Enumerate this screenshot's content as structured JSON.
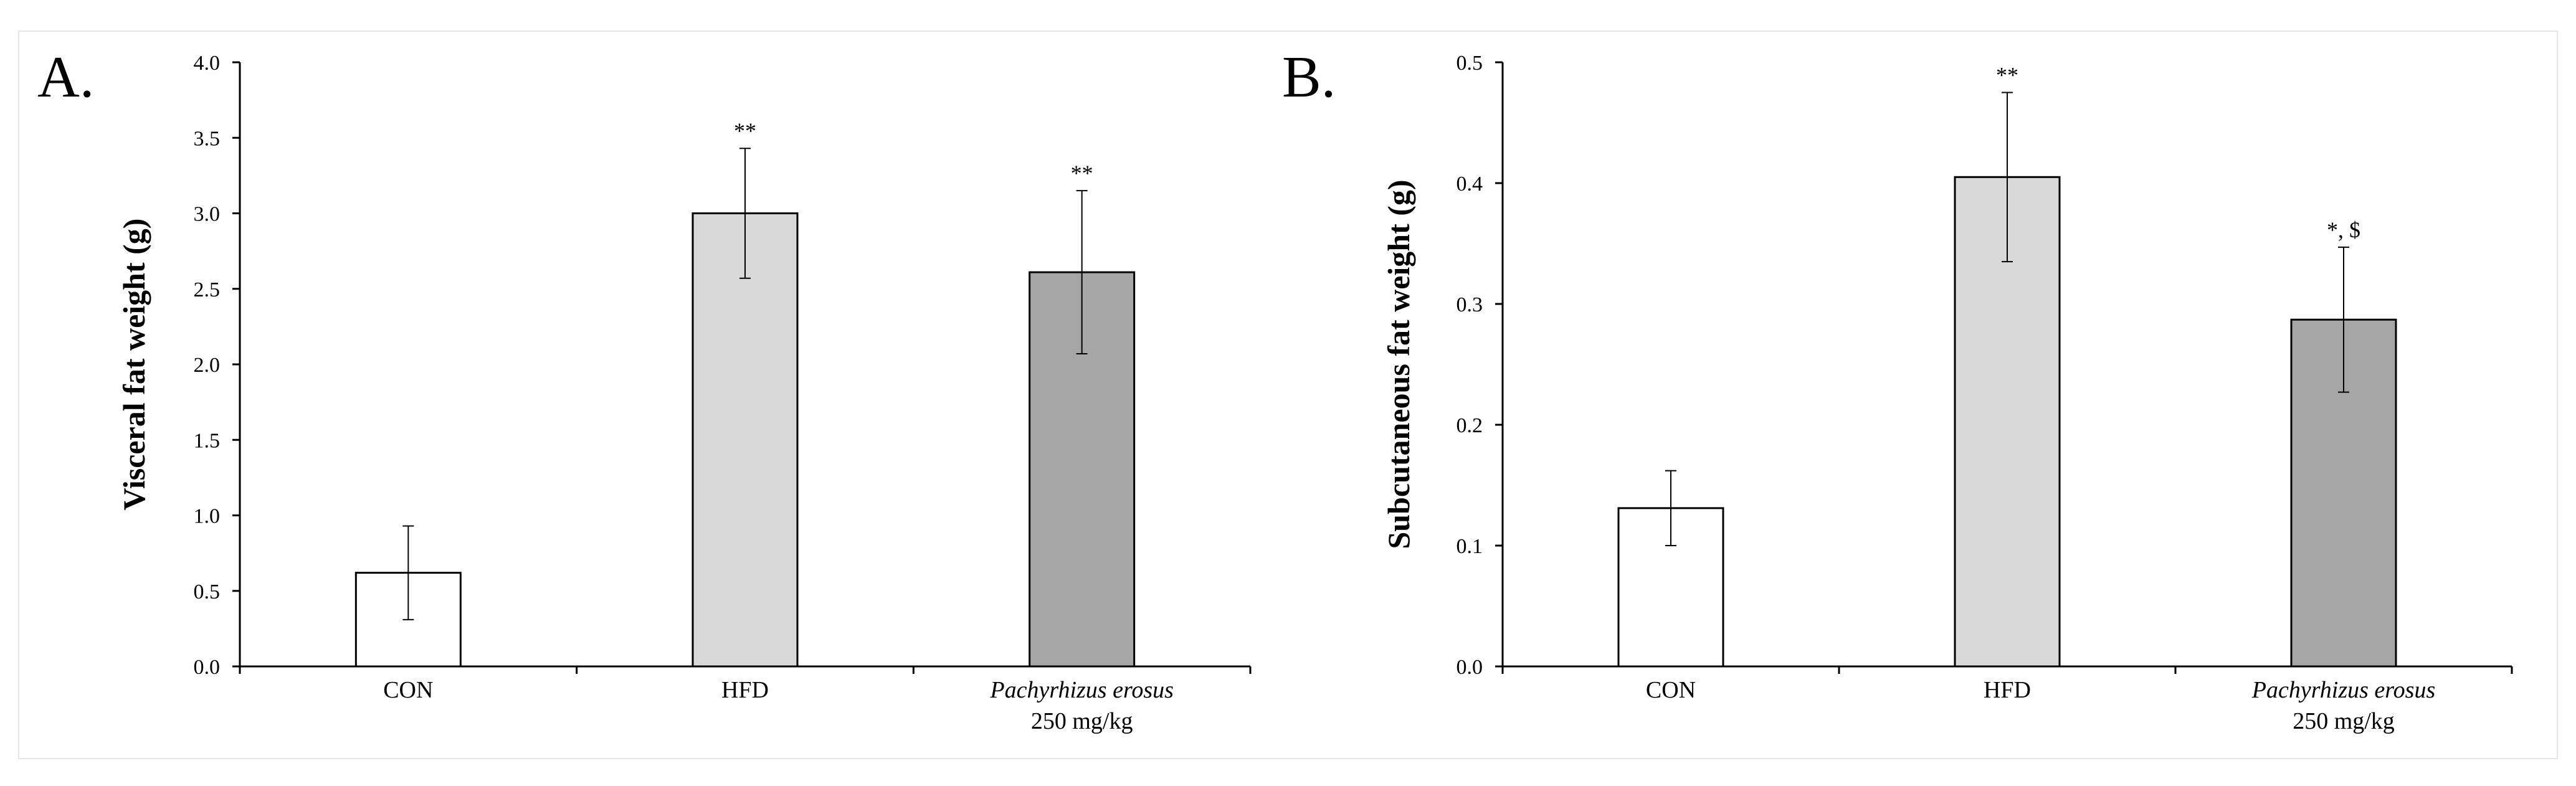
{
  "chart_data": [
    {
      "type": "bar",
      "panel_label": "A.",
      "ylabel": "Visceral fat weight (g)",
      "xlabel": "",
      "ylim": [
        0,
        4.0
      ],
      "yticks": [
        "0.0",
        "0.5",
        "1.0",
        "1.5",
        "2.0",
        "2.5",
        "3.0",
        "3.5",
        "4.0"
      ],
      "ytick_values": [
        0,
        0.5,
        1.0,
        1.5,
        2.0,
        2.5,
        3.0,
        3.5,
        4.0
      ],
      "categories": [
        {
          "line1": "CON",
          "line2": "",
          "italic": false
        },
        {
          "line1": "HFD",
          "line2": "",
          "italic": false
        },
        {
          "line1": "Pachyrhizus erosus",
          "line2": "250 mg/kg",
          "italic": true
        }
      ],
      "values": [
        0.62,
        3.0,
        2.61
      ],
      "errors": [
        0.31,
        0.43,
        0.54
      ],
      "annotations": [
        "",
        "**",
        "**"
      ],
      "colors": [
        "#ffffff",
        "#d9d9d9",
        "#a6a6a6"
      ],
      "grid": false,
      "legend": "none"
    },
    {
      "type": "bar",
      "panel_label": "B.",
      "ylabel": "Subcutaneous fat weight (g)",
      "xlabel": "",
      "ylim": [
        0,
        0.5
      ],
      "yticks": [
        "0.0",
        "0.1",
        "0.2",
        "0.3",
        "0.4",
        "0.5"
      ],
      "ytick_values": [
        0,
        0.1,
        0.2,
        0.3,
        0.4,
        0.5
      ],
      "categories": [
        {
          "line1": "CON",
          "line2": "",
          "italic": false
        },
        {
          "line1": "HFD",
          "line2": "",
          "italic": false
        },
        {
          "line1": "Pachyrhizus erosus",
          "line2": "250 mg/kg",
          "italic": true
        }
      ],
      "values": [
        0.131,
        0.405,
        0.287
      ],
      "errors": [
        0.031,
        0.07,
        0.06
      ],
      "annotations": [
        "",
        "**",
        "*, $"
      ],
      "colors": [
        "#ffffff",
        "#d9d9d9",
        "#a6a6a6"
      ],
      "grid": false,
      "legend": "none"
    }
  ]
}
